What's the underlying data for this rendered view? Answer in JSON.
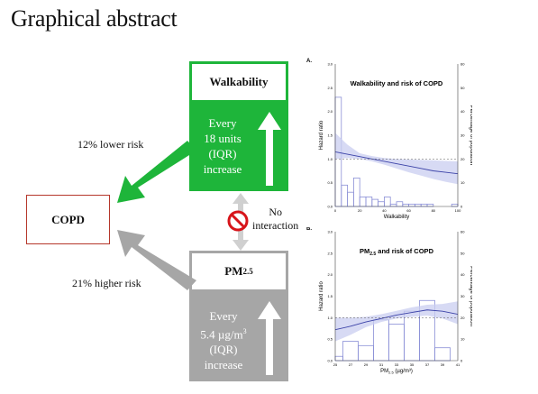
{
  "title": "Graphical abstract",
  "colors": {
    "green": "#1eb53a",
    "gray": "#a6a6a6",
    "copd_border": "#b5372b",
    "no_sign": "#d7141a",
    "ci_fill": "#c9cdf0",
    "curve": "#3c43a8",
    "bars": "#8a8fd6"
  },
  "walkability_box": {
    "title": "Walkability",
    "lines": [
      "Every",
      "18 units",
      "(IQR)",
      "increase"
    ]
  },
  "pm_box": {
    "title_main": "PM",
    "title_sub": "2.5",
    "lines": [
      "Every",
      "5.4 µg/m",
      "(IQR)",
      "increase"
    ],
    "superscript": "3"
  },
  "copd_label": "COPD",
  "lower_risk": "12% lower risk",
  "higher_risk": "21% higher risk",
  "no_interaction": [
    "No",
    "interaction"
  ],
  "chart_data": [
    {
      "panel": "A.",
      "type": "line",
      "title": "Walkability and risk of COPD",
      "xlabel": "Walkability",
      "ylabel": "Hazard ratio",
      "y2label": "Percentage of population",
      "xticks": [
        "0",
        "20",
        "40",
        "60",
        "80",
        "100"
      ],
      "yticks": [
        "0.0",
        "0.5",
        "1.0",
        "1.5",
        "2.0",
        "2.5",
        "3.0"
      ],
      "y2ticks": [
        "0",
        "10",
        "20",
        "30",
        "40",
        "50",
        "60"
      ],
      "xlim": [
        0,
        100
      ],
      "ylim": [
        0,
        3.0
      ],
      "y2lim": [
        0,
        60
      ],
      "reference_line": 1.0,
      "series": [
        {
          "x": [
            0,
            10,
            20,
            30,
            40,
            50,
            60,
            70,
            80,
            90,
            100
          ],
          "hr": [
            1.15,
            1.1,
            1.05,
            1.0,
            0.95,
            0.9,
            0.85,
            0.8,
            0.75,
            0.72,
            0.69
          ],
          "lo": [
            1.0,
            1.02,
            1.0,
            0.95,
            0.88,
            0.8,
            0.72,
            0.65,
            0.58,
            0.52,
            0.47
          ],
          "hi": [
            1.55,
            1.3,
            1.12,
            1.06,
            1.02,
            1.0,
            0.99,
            0.98,
            0.97,
            0.96,
            0.95
          ]
        }
      ],
      "histogram": {
        "edges": [
          0,
          5,
          10,
          15,
          20,
          25,
          30,
          35,
          40,
          45,
          50,
          55,
          60,
          65,
          70,
          75,
          80,
          85,
          90,
          95,
          100
        ],
        "pct": [
          46,
          9,
          6,
          12,
          4,
          4,
          3,
          2,
          4,
          1,
          2,
          1,
          1,
          1,
          1,
          1,
          0,
          0,
          0,
          1
        ]
      }
    },
    {
      "panel": "B.",
      "type": "line",
      "title": "PM",
      "title_sub": "2.5",
      "title_rest": " and risk of COPD",
      "xlabel": "PM",
      "xlabel_sub": "2.5",
      "xlabel_rest": " (µg/m³)",
      "ylabel": "Hazard ratio",
      "y2label": "Percentage of population",
      "xticks": [
        "25",
        "27",
        "29",
        "31",
        "33",
        "35",
        "37",
        "39",
        "41"
      ],
      "yticks": [
        "0.0",
        "0.5",
        "1.0",
        "1.5",
        "2.0",
        "2.5",
        "3.0"
      ],
      "y2ticks": [
        "0",
        "10",
        "20",
        "30",
        "40",
        "50",
        "60"
      ],
      "xlim": [
        25,
        41
      ],
      "ylim": [
        0,
        3.0
      ],
      "y2lim": [
        0,
        60
      ],
      "reference_line": 1.0,
      "series": [
        {
          "x": [
            25,
            27,
            29,
            31,
            33,
            35,
            37,
            39,
            41
          ],
          "hr": [
            0.72,
            0.8,
            0.9,
            0.98,
            1.06,
            1.12,
            1.18,
            1.15,
            1.08
          ],
          "lo": [
            0.45,
            0.6,
            0.78,
            0.9,
            0.98,
            1.02,
            1.05,
            0.98,
            0.85
          ],
          "hi": [
            1.0,
            1.0,
            1.02,
            1.08,
            1.16,
            1.24,
            1.3,
            1.32,
            1.38
          ]
        }
      ],
      "histogram": {
        "edges": [
          25,
          26,
          28,
          30,
          32,
          34,
          36,
          38,
          40,
          41
        ],
        "pct": [
          2,
          9,
          7,
          19,
          17,
          23,
          28,
          6,
          0
        ]
      }
    }
  ]
}
